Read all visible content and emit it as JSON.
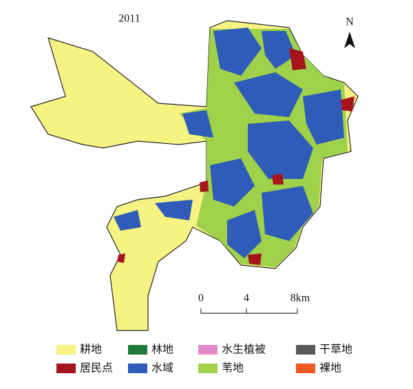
{
  "map": {
    "title": "2011",
    "north": "N",
    "scale_bar": {
      "labels": [
        "0",
        "4",
        "8km"
      ]
    },
    "legend": [
      {
        "label": "耕地",
        "color": "#f6f383"
      },
      {
        "label": "林地",
        "color": "#1f7a3a"
      },
      {
        "label": "水生植被",
        "color": "#e28ac8"
      },
      {
        "label": "干草地",
        "color": "#5a5a5a"
      },
      {
        "label": "居民点",
        "color": "#a8141c"
      },
      {
        "label": "水域",
        "color": "#2e5cb8"
      },
      {
        "label": "苇地",
        "color": "#9fd14a"
      },
      {
        "label": "裸地",
        "color": "#f05a1e"
      }
    ]
  }
}
